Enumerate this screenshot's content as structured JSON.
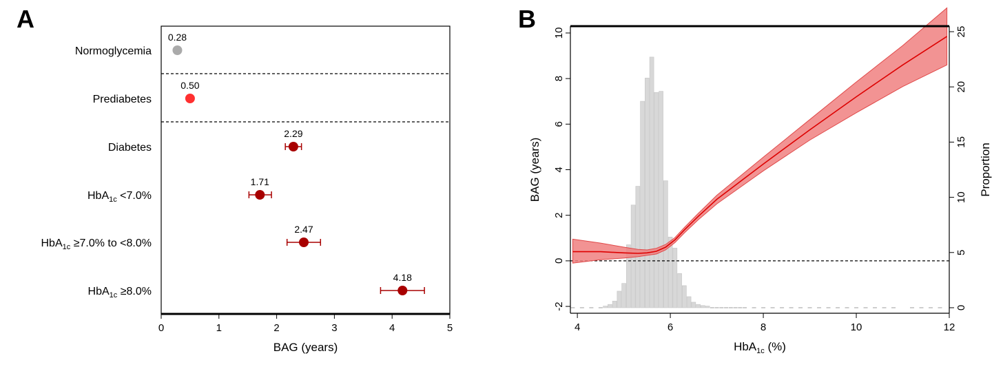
{
  "chart_data": [
    {
      "panel": "A",
      "type": "scatter",
      "subtype": "forest",
      "xlabel": "BAG (years)",
      "xlim": [
        0,
        5
      ],
      "xticks": [
        0,
        1,
        2,
        3,
        4,
        5
      ],
      "categories": [
        {
          "label": "Normoglycemia",
          "value": 0.28,
          "value_label": "0.28",
          "lo": null,
          "hi": null,
          "color": "#aaaaaa"
        },
        {
          "label": "Prediabetes",
          "value": 0.5,
          "value_label": "0.50",
          "lo": null,
          "hi": null,
          "color": "#ff3030"
        },
        {
          "label": "Diabetes",
          "value": 2.29,
          "value_label": "2.29",
          "lo": 2.15,
          "hi": 2.43,
          "color": "#a80000"
        },
        {
          "label_parts": [
            "HbA",
            "1c",
            " <7.0%"
          ],
          "value": 1.71,
          "value_label": "1.71",
          "lo": 1.52,
          "hi": 1.91,
          "color": "#a80000"
        },
        {
          "label_parts": [
            "HbA",
            "1c",
            " ≥7.0% to <8.0%"
          ],
          "value": 2.47,
          "value_label": "2.47",
          "lo": 2.18,
          "hi": 2.76,
          "color": "#a80000"
        },
        {
          "label_parts": [
            "HbA",
            "1c",
            " ≥8.0%"
          ],
          "value": 4.18,
          "value_label": "4.18",
          "lo": 3.8,
          "hi": 4.56,
          "color": "#a80000"
        }
      ],
      "separators_after": [
        0,
        1
      ]
    },
    {
      "panel": "B",
      "type": "line",
      "xlabel_parts": [
        "HbA",
        "1c",
        " (%)"
      ],
      "ylabel": "BAG (years)",
      "y2label": "Proportion",
      "xlim": [
        3.85,
        12.0
      ],
      "ylim": [
        -2.3,
        10.3
      ],
      "y2lim": [
        -0.5,
        25.5
      ],
      "xticks": [
        4,
        6,
        8,
        10,
        12
      ],
      "yticks": [
        -2,
        0,
        2,
        4,
        6,
        8,
        10
      ],
      "y2ticks": [
        0,
        5,
        10,
        15,
        20,
        25
      ],
      "reference_y": 0,
      "line_color": "#dd0000",
      "band_color": "#f08080",
      "series": [
        {
          "name": "BAG",
          "x": [
            3.9,
            4.5,
            5.0,
            5.3,
            5.5,
            5.7,
            5.9,
            6.1,
            6.3,
            6.6,
            7.0,
            8.0,
            9.0,
            10.0,
            11.0,
            11.95
          ],
          "y": [
            0.4,
            0.4,
            0.35,
            0.33,
            0.35,
            0.42,
            0.6,
            0.92,
            1.35,
            1.95,
            2.7,
            4.25,
            5.75,
            7.2,
            8.6,
            9.85
          ]
        },
        {
          "name": "CI upper",
          "x": [
            3.9,
            4.5,
            5.0,
            5.3,
            5.5,
            5.7,
            5.9,
            6.1,
            6.3,
            6.6,
            7.0,
            8.0,
            9.0,
            10.0,
            11.0,
            11.95
          ],
          "y": [
            0.95,
            0.78,
            0.6,
            0.5,
            0.48,
            0.55,
            0.72,
            1.02,
            1.46,
            2.08,
            2.88,
            4.55,
            6.2,
            7.85,
            9.45,
            11.1
          ]
        },
        {
          "name": "CI lower",
          "x": [
            3.9,
            4.5,
            5.0,
            5.3,
            5.5,
            5.7,
            5.9,
            6.1,
            6.3,
            6.6,
            7.0,
            8.0,
            9.0,
            10.0,
            11.0,
            11.95
          ],
          "y": [
            -0.1,
            0.05,
            0.12,
            0.18,
            0.24,
            0.3,
            0.48,
            0.8,
            1.22,
            1.8,
            2.5,
            3.95,
            5.3,
            6.5,
            7.65,
            8.6
          ]
        }
      ],
      "histogram": {
        "x": [
          3.9,
          4.1,
          4.3,
          4.5,
          4.6,
          4.7,
          4.8,
          4.9,
          5.0,
          5.1,
          5.2,
          5.3,
          5.4,
          5.5,
          5.6,
          5.7,
          5.8,
          5.9,
          6.0,
          6.1,
          6.2,
          6.3,
          6.4,
          6.5,
          6.6,
          6.7,
          6.8,
          6.9,
          7.0,
          7.1,
          7.2,
          7.3,
          7.4,
          7.5,
          7.6,
          7.8,
          8.0,
          8.2,
          8.4,
          8.6,
          8.8,
          9.0,
          9.2,
          9.4,
          9.6,
          9.8,
          10.0,
          10.2,
          10.4,
          10.6,
          10.8,
          11.2,
          11.4,
          11.6,
          11.8
        ],
        "y": [
          0.05,
          0.05,
          0.05,
          0.1,
          0.15,
          0.3,
          0.6,
          1.5,
          2.2,
          5.7,
          9.3,
          11.0,
          18.7,
          20.8,
          22.7,
          19.5,
          19.6,
          11.5,
          6.4,
          5.4,
          3.1,
          2.0,
          1.0,
          0.5,
          0.3,
          0.2,
          0.15,
          0.1,
          0.1,
          0.08,
          0.06,
          0.05,
          0.05,
          0.05,
          0.05,
          0.05,
          0.05,
          0.05,
          0.05,
          0.05,
          0.05,
          0.05,
          0.05,
          0.05,
          0.05,
          0.05,
          0.05,
          0.05,
          0.05,
          0.05,
          0.05,
          0.05,
          0.05,
          0.05,
          0.05
        ]
      }
    }
  ],
  "labels": {
    "panel_a": "A",
    "panel_b": "B"
  }
}
